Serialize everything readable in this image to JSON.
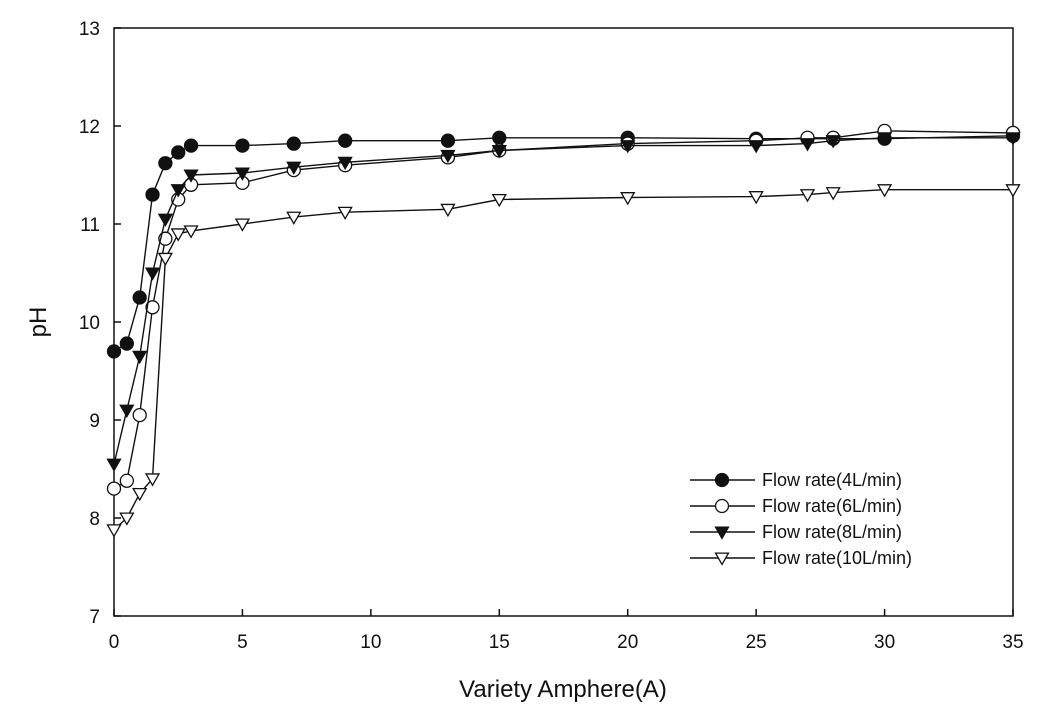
{
  "chart_data": {
    "type": "line",
    "title": "",
    "xlabel": "Variety Amphere(A)",
    "ylabel": "pH",
    "xlim": [
      0,
      35
    ],
    "ylim": [
      7,
      13
    ],
    "xticks": [
      0,
      5,
      10,
      15,
      20,
      25,
      30,
      35
    ],
    "yticks": [
      7,
      8,
      9,
      10,
      11,
      12,
      13
    ],
    "grid": false,
    "legend_position": "bottom-right",
    "series": [
      {
        "name": "Flow rate(4L/min)",
        "marker": "filled-circle",
        "x": [
          0,
          0.5,
          1,
          1.5,
          2,
          2.5,
          3,
          5,
          7,
          9,
          13,
          15,
          20,
          25,
          27,
          28,
          30,
          35
        ],
        "y": [
          9.7,
          9.78,
          10.25,
          11.3,
          11.62,
          11.73,
          11.8,
          11.8,
          11.82,
          11.85,
          11.85,
          11.88,
          11.88,
          11.87,
          11.87,
          11.87,
          11.87,
          11.9
        ]
      },
      {
        "name": "Flow rate(6L/min)",
        "marker": "open-circle",
        "x": [
          0,
          0.5,
          1,
          1.5,
          2,
          2.5,
          3,
          5,
          7,
          9,
          13,
          15,
          20,
          25,
          27,
          28,
          30,
          35
        ],
        "y": [
          8.3,
          8.38,
          9.05,
          10.15,
          10.85,
          11.25,
          11.4,
          11.42,
          11.55,
          11.6,
          11.68,
          11.75,
          11.82,
          11.85,
          11.88,
          11.88,
          11.95,
          11.93
        ]
      },
      {
        "name": "Flow rate(8L/min)",
        "marker": "filled-triangle-down",
        "x": [
          0,
          0.5,
          1,
          1.5,
          2,
          2.5,
          3,
          5,
          7,
          9,
          13,
          15,
          20,
          25,
          27,
          28,
          30,
          35
        ],
        "y": [
          8.55,
          9.1,
          9.65,
          10.5,
          11.05,
          11.35,
          11.5,
          11.52,
          11.58,
          11.63,
          11.7,
          11.75,
          11.8,
          11.8,
          11.82,
          11.85,
          11.88,
          11.88
        ]
      },
      {
        "name": "Flow rate(10L/min)",
        "marker": "open-triangle-down",
        "x": [
          0,
          0.5,
          1,
          1.5,
          2,
          2.5,
          3,
          5,
          7,
          9,
          13,
          15,
          20,
          25,
          27,
          28,
          30,
          35
        ],
        "y": [
          7.88,
          8.0,
          8.25,
          8.4,
          10.65,
          10.9,
          10.93,
          11.0,
          11.07,
          11.12,
          11.15,
          11.25,
          11.27,
          11.28,
          11.3,
          11.32,
          11.35,
          11.35
        ]
      }
    ]
  }
}
